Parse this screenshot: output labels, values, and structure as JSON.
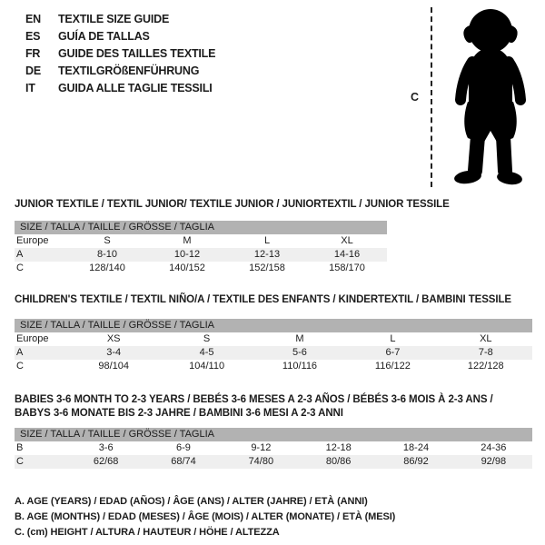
{
  "colors": {
    "header_bar": "#b2b2b2",
    "row_alt": "#efefef",
    "text": "#1c1c1c",
    "silhouette": "#000000"
  },
  "title_block": {
    "items": [
      {
        "code": "EN",
        "text": "TEXTILE SIZE GUIDE"
      },
      {
        "code": "ES",
        "text": "GUÍA DE TALLAS"
      },
      {
        "code": "FR",
        "text": "GUIDE DES TAILLES TEXTILE"
      },
      {
        "code": "DE",
        "text": "TEXTILGRÖßENFÜHRUNG"
      },
      {
        "code": "IT",
        "text": "GUIDA ALLE TAGLIE TESSILI"
      }
    ]
  },
  "figure": {
    "measure_label": "C",
    "image": "toddler-silhouette"
  },
  "sections": [
    {
      "title": "JUNIOR TEXTILE / TEXTIL JUNIOR/ TEXTILE JUNIOR / JUNIORTEXTIL / JUNIOR TESSILE",
      "header": "SIZE / TALLA / TAILLE / GRÖSSE / TAGLIA",
      "rows": [
        {
          "label": "Europe",
          "cells": [
            "S",
            "M",
            "L",
            "XL"
          ],
          "shaded": false
        },
        {
          "label": "A",
          "cells": [
            "8-10",
            "10-12",
            "12-13",
            "14-16"
          ],
          "shaded": true
        },
        {
          "label": "C",
          "cells": [
            "128/140",
            "140/152",
            "152/158",
            "158/170"
          ],
          "shaded": false
        }
      ]
    },
    {
      "title": "CHILDREN'S TEXTILE / TEXTIL NIÑO/A / TEXTILE DES ENFANTS / KINDERTEXTIL / BAMBINI TESSILE",
      "header": "SIZE / TALLA / TAILLE / GRÖSSE / TAGLIA",
      "rows": [
        {
          "label": "Europe",
          "cells": [
            "XS",
            "S",
            "M",
            "L",
            "XL"
          ],
          "shaded": false
        },
        {
          "label": "A",
          "cells": [
            "3-4",
            "4-5",
            "5-6",
            "6-7",
            "7-8"
          ],
          "shaded": true
        },
        {
          "label": "C",
          "cells": [
            "98/104",
            "104/110",
            "110/116",
            "116/122",
            "122/128"
          ],
          "shaded": false
        }
      ]
    },
    {
      "title": "BABIES 3-6 MONTH TO 2-3 YEARS / BEBÉS 3-6 MESES A 2-3 AÑOS / BÉBÉS 3-6 MOIS À 2-3 ANS /",
      "title2": "BABYS 3-6 MONATE BIS 2-3 JAHRE / BAMBINI 3-6 MESI A 2-3 ANNI",
      "header": "SIZE / TALLA / TAILLE / GRÖSSE / TAGLIA",
      "rows": [
        {
          "label": "B",
          "cells": [
            "3-6",
            "6-9",
            "9-12",
            "12-18",
            "18-24",
            "24-36"
          ],
          "shaded": false
        },
        {
          "label": "C",
          "cells": [
            "62/68",
            "68/74",
            "74/80",
            "80/86",
            "86/92",
            "92/98"
          ],
          "shaded": true
        }
      ]
    }
  ],
  "legend": {
    "lines": [
      "A. AGE (YEARS) / EDAD (AÑOS) / ÂGE (ANS) / ALTER (JAHRE) / ETÀ (ANNI)",
      "B. AGE (MONTHS) / EDAD (MESES) / ÂGE (MOIS) / ALTER (MONATE) / ETÀ (MESI)",
      "C. (cm) HEIGHT / ALTURA / HAUTEUR / HÖHE / ALTEZZA"
    ]
  }
}
